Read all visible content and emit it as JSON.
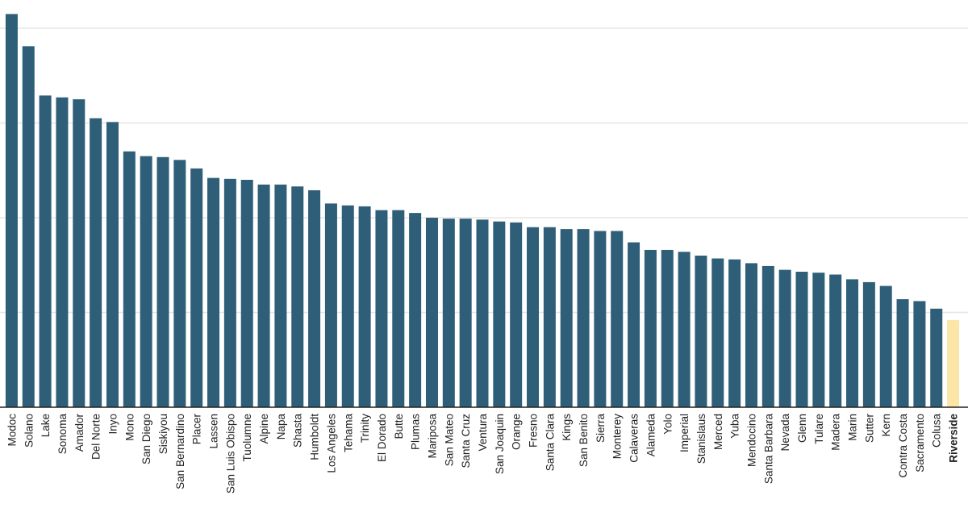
{
  "chart_data": {
    "type": "bar",
    "title": "",
    "xlabel": "",
    "ylabel": "",
    "ylim": [
      0,
      4.2
    ],
    "grid": true,
    "gridlines": [
      1,
      2,
      3,
      4
    ],
    "colors": {
      "bar": "#2f5f78",
      "highlight": "#fbe6a8"
    },
    "highlight": "Riverside",
    "categories": [
      "Modoc",
      "Solano",
      "Lake",
      "Sonoma",
      "Amador",
      "Del Norte",
      "Inyo",
      "Mono",
      "San Diego",
      "Siskiyou",
      "San Bernardino",
      "Placer",
      "Lassen",
      "San Luis Obispo",
      "Tuolumne",
      "Alpine",
      "Napa",
      "Shasta",
      "Humboldt",
      "Los Angeles",
      "Tehama",
      "Trinity",
      "El Dorado",
      "Butte",
      "Plumas",
      "Mariposa",
      "San Mateo",
      "Santa Cruz",
      "Ventura",
      "San Joaquin",
      "Orange",
      "Fresno",
      "Santa Clara",
      "Kings",
      "San Benito",
      "Sierra",
      "Monterey",
      "Calaveras",
      "Alameda",
      "Yolo",
      "Imperial",
      "Stanislaus",
      "Merced",
      "Yuba",
      "Mendocino",
      "Santa Barbara",
      "Nevada",
      "Glenn",
      "Tulare",
      "Madera",
      "Marin",
      "Sutter",
      "Kern",
      "Contra Costa",
      "Sacramento",
      "Colusa",
      "Riverside"
    ],
    "values": [
      4.15,
      3.81,
      3.29,
      3.27,
      3.25,
      3.05,
      3.01,
      2.7,
      2.65,
      2.64,
      2.61,
      2.52,
      2.42,
      2.41,
      2.4,
      2.35,
      2.35,
      2.33,
      2.29,
      2.15,
      2.13,
      2.12,
      2.08,
      2.08,
      2.05,
      2.0,
      1.99,
      1.99,
      1.98,
      1.96,
      1.95,
      1.9,
      1.9,
      1.88,
      1.88,
      1.86,
      1.86,
      1.74,
      1.66,
      1.66,
      1.64,
      1.6,
      1.57,
      1.56,
      1.52,
      1.49,
      1.45,
      1.43,
      1.42,
      1.4,
      1.35,
      1.32,
      1.28,
      1.14,
      1.12,
      1.04,
      0.92
    ]
  }
}
